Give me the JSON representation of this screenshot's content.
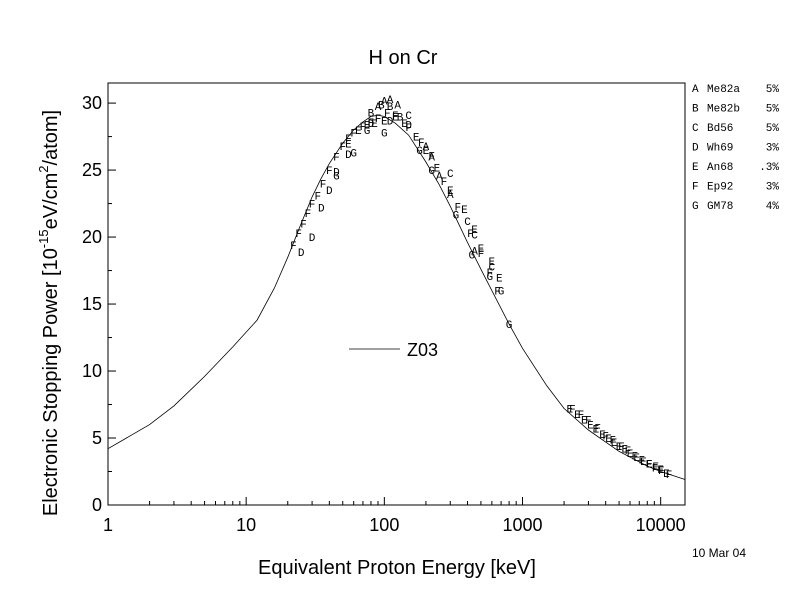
{
  "chart_data": {
    "type": "scatter",
    "title": "H on Cr",
    "xlabel": "Equivalent Proton Energy [keV]",
    "ylabel_parts": [
      "Electronic Stopping Power [10",
      "-15",
      "eV/cm",
      "2",
      "/atom]"
    ],
    "xscale": "log",
    "xlim": [
      1,
      15000
    ],
    "ylim": [
      0,
      31.5
    ],
    "x_ticks": [
      {
        "value": 1,
        "label": "1"
      },
      {
        "value": 10,
        "label": "10"
      },
      {
        "value": 100,
        "label": "100"
      },
      {
        "value": 1000,
        "label": "1000"
      },
      {
        "value": 10000,
        "label": "10000"
      }
    ],
    "y_ticks": [
      {
        "value": 0,
        "label": "0"
      },
      {
        "value": 5,
        "label": "5"
      },
      {
        "value": 10,
        "label": "10"
      },
      {
        "value": 15,
        "label": "15"
      },
      {
        "value": 20,
        "label": "20"
      },
      {
        "value": 25,
        "label": "25"
      },
      {
        "value": 30,
        "label": "30"
      }
    ],
    "curve": {
      "name": "Z03",
      "x": [
        1,
        2,
        3,
        5,
        8,
        12,
        16,
        20,
        25,
        30,
        35,
        40,
        50,
        60,
        70,
        80,
        90,
        100,
        120,
        150,
        200,
        250,
        300,
        400,
        500,
        600,
        800,
        1000,
        1500,
        2000,
        3000,
        5000,
        8000,
        10000,
        15000
      ],
      "y": [
        4.2,
        6.0,
        7.4,
        9.6,
        11.8,
        13.8,
        16.2,
        18.5,
        21.0,
        23.0,
        24.4,
        25.5,
        27.0,
        28.0,
        28.6,
        29.0,
        29.1,
        29.0,
        28.5,
        27.6,
        25.6,
        23.9,
        22.3,
        19.6,
        17.6,
        16.0,
        13.5,
        11.7,
        8.9,
        7.2,
        5.6,
        4.0,
        2.9,
        2.5,
        1.9
      ]
    },
    "legend": [
      {
        "symbol": "A",
        "name": "Me82a",
        "unc": "5%"
      },
      {
        "symbol": "B",
        "name": "Me82b",
        "unc": "5%"
      },
      {
        "symbol": "C",
        "name": "Bd56",
        "unc": "5%"
      },
      {
        "symbol": "D",
        "name": "Wh69",
        "unc": "3%"
      },
      {
        "symbol": "E",
        "name": "An68",
        "unc": ".3%"
      },
      {
        "symbol": "F",
        "name": "Ep92",
        "unc": "3%"
      },
      {
        "symbol": "G",
        "name": "GM78",
        "unc": "4%"
      }
    ],
    "legend_position": "right-outside",
    "series": [
      {
        "symbol": "A",
        "points": [
          [
            90,
            29.8
          ],
          [
            100,
            30.2
          ],
          [
            110,
            30.3
          ],
          [
            125,
            29.9
          ],
          [
            200,
            26.8
          ],
          [
            220,
            26.0
          ],
          [
            250,
            24.6
          ],
          [
            300,
            23.2
          ],
          [
            450,
            19.0
          ]
        ]
      },
      {
        "symbol": "B",
        "points": [
          [
            80,
            29.3
          ],
          [
            95,
            29.9
          ],
          [
            110,
            29.8
          ],
          [
            130,
            29.0
          ]
        ]
      },
      {
        "symbol": "C",
        "points": [
          [
            150,
            29.1
          ],
          [
            300,
            24.8
          ],
          [
            400,
            21.2
          ],
          [
            450,
            20.2
          ],
          [
            600,
            17.8
          ]
        ]
      },
      {
        "symbol": "D",
        "points": [
          [
            25,
            18.9
          ],
          [
            30,
            20.0
          ],
          [
            35,
            22.2
          ],
          [
            40,
            23.5
          ],
          [
            45,
            24.9
          ],
          [
            55,
            26.2
          ],
          [
            80,
            28.5
          ],
          [
            110,
            28.7
          ],
          [
            150,
            28.4
          ]
        ]
      },
      {
        "symbol": "E",
        "points": [
          [
            55,
            27.0
          ],
          [
            65,
            28.0
          ],
          [
            75,
            28.4
          ],
          [
            85,
            28.5
          ],
          [
            100,
            28.7
          ],
          [
            120,
            29.0
          ],
          [
            140,
            28.5
          ],
          [
            170,
            27.5
          ],
          [
            200,
            26.5
          ],
          [
            240,
            25.2
          ],
          [
            300,
            23.5
          ],
          [
            380,
            22.1
          ],
          [
            450,
            20.6
          ],
          [
            500,
            19.2
          ],
          [
            600,
            18.2
          ],
          [
            680,
            17.0
          ],
          [
            2200,
            7.2
          ],
          [
            2500,
            6.8
          ],
          [
            2800,
            6.4
          ],
          [
            3100,
            6.0
          ],
          [
            3400,
            5.7
          ],
          [
            3800,
            5.3
          ],
          [
            4200,
            5.0
          ],
          [
            4600,
            4.7
          ],
          [
            5000,
            4.4
          ],
          [
            5500,
            4.2
          ],
          [
            6000,
            3.9
          ],
          [
            6700,
            3.6
          ],
          [
            7500,
            3.3
          ],
          [
            8300,
            3.1
          ],
          [
            9200,
            2.9
          ],
          [
            10000,
            2.7
          ],
          [
            11000,
            2.4
          ]
        ]
      },
      {
        "symbol": "F",
        "points": [
          [
            22,
            19.4
          ],
          [
            24,
            20.3
          ],
          [
            26,
            21.0
          ],
          [
            28,
            21.8
          ],
          [
            30,
            22.5
          ],
          [
            33,
            23.1
          ],
          [
            36,
            24.0
          ],
          [
            40,
            25.0
          ],
          [
            45,
            26.0
          ],
          [
            50,
            26.8
          ],
          [
            55,
            27.4
          ],
          [
            60,
            27.8
          ],
          [
            70,
            28.3
          ],
          [
            80,
            28.6
          ],
          [
            90,
            28.9
          ],
          [
            105,
            29.3
          ],
          [
            120,
            29.1
          ],
          [
            150,
            28.2
          ],
          [
            185,
            27.1
          ],
          [
            220,
            26.1
          ],
          [
            270,
            24.2
          ],
          [
            340,
            22.3
          ],
          [
            420,
            20.3
          ],
          [
            500,
            18.8
          ],
          [
            580,
            17.4
          ],
          [
            660,
            16.0
          ],
          [
            2300,
            7.2
          ],
          [
            2650,
            6.8
          ],
          [
            3000,
            6.4
          ],
          [
            3500,
            5.8
          ],
          [
            4000,
            5.2
          ],
          [
            4500,
            4.9
          ],
          [
            5200,
            4.4
          ],
          [
            5800,
            4.1
          ],
          [
            6500,
            3.7
          ],
          [
            7300,
            3.4
          ],
          [
            8200,
            3.1
          ],
          [
            9100,
            2.8
          ],
          [
            10100,
            2.6
          ],
          [
            11500,
            2.3
          ]
        ]
      },
      {
        "symbol": "G",
        "points": [
          [
            45,
            24.6
          ],
          [
            60,
            26.3
          ],
          [
            75,
            28.0
          ],
          [
            100,
            27.8
          ],
          [
            180,
            26.5
          ],
          [
            220,
            25.0
          ],
          [
            330,
            21.7
          ],
          [
            430,
            18.7
          ],
          [
            580,
            17.1
          ],
          [
            700,
            16.0
          ],
          [
            800,
            13.5
          ]
        ]
      }
    ]
  },
  "footer": {
    "date": "10 Mar 04"
  }
}
